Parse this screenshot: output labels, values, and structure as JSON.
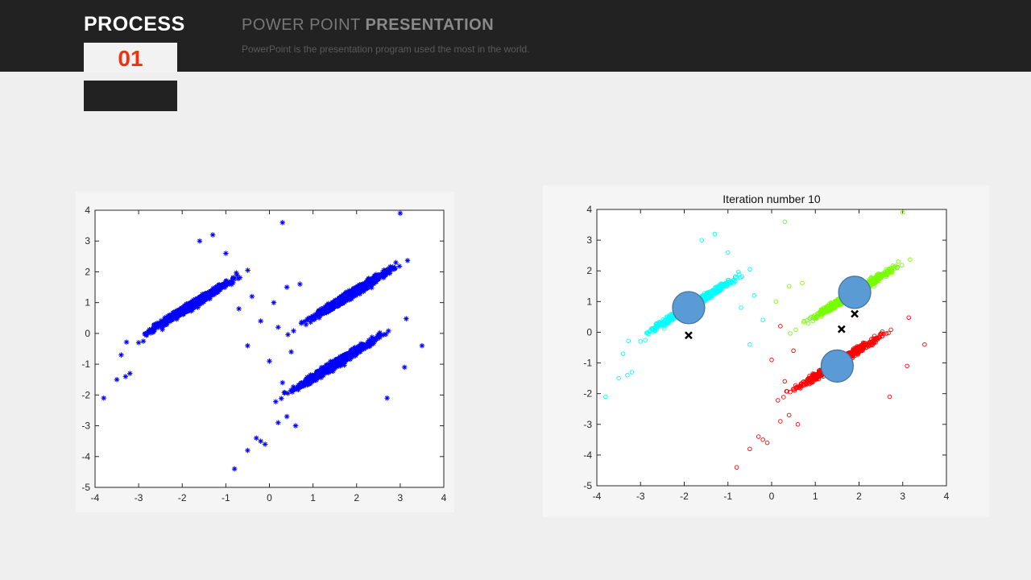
{
  "header": {
    "process_label": "PROCESS",
    "process_number": "01",
    "headline_light": "POWER POINT",
    "headline_bold": "PRESENTATION",
    "subtitle": "PowerPoint is the presentation program used the most in the world."
  },
  "colors": {
    "header_bg": "#222222",
    "page_bg": "#efefef",
    "accent_number": "#ee3311",
    "raw_points": "#0000ff",
    "cluster_cyan": "#00ffff",
    "cluster_green": "#77ff00",
    "cluster_red": "#ff0000",
    "centroid": "#5b9bd5"
  },
  "chart_data": [
    {
      "type": "scatter",
      "title": "",
      "xlabel": "",
      "ylabel": "",
      "xlim": [
        -4,
        4
      ],
      "ylim": [
        -5,
        4
      ],
      "xticks": [
        "-4",
        "-3",
        "-2",
        "-1",
        "0",
        "1",
        "2",
        "3",
        "4"
      ],
      "yticks": [
        "4",
        "3",
        "2",
        "1",
        "0",
        "-1",
        "-2",
        "-3",
        "-4",
        "-5"
      ],
      "grid": false,
      "marker": "asterisk",
      "series": [
        {
          "color": "#0000ff",
          "clusters": [
            {
              "center": [
                -1.8,
                0.9
              ],
              "count": 900
            },
            {
              "center": [
                1.9,
                1.3
              ],
              "count": 1000
            },
            {
              "center": [
                1.5,
                -1.0
              ],
              "count": 1000
            }
          ]
        }
      ],
      "outliers": [
        [
          -3.8,
          -2.1
        ],
        [
          -3.5,
          -1.5
        ],
        [
          -3.3,
          -1.4
        ],
        [
          -3.2,
          -1.3
        ],
        [
          -3.4,
          -0.7
        ],
        [
          -3.0,
          -0.3
        ],
        [
          -1.0,
          2.6
        ],
        [
          -1.3,
          3.2
        ],
        [
          -1.6,
          3.0
        ],
        [
          0.3,
          3.6
        ],
        [
          3.0,
          3.9
        ],
        [
          3.5,
          -0.4
        ],
        [
          3.1,
          -1.1
        ],
        [
          -0.3,
          -3.4
        ],
        [
          -0.2,
          -3.5
        ],
        [
          -0.1,
          -3.6
        ],
        [
          -0.5,
          -3.8
        ],
        [
          -0.8,
          -4.4
        ],
        [
          0.2,
          -2.9
        ],
        [
          0.4,
          -2.7
        ],
        [
          0.6,
          -3.0
        ],
        [
          0.5,
          -0.6
        ],
        [
          0.2,
          0.2
        ],
        [
          -0.2,
          0.4
        ],
        [
          0.1,
          1.0
        ],
        [
          0.4,
          1.5
        ],
        [
          0.7,
          1.6
        ],
        [
          -0.4,
          1.2
        ],
        [
          -0.7,
          0.8
        ],
        [
          0.0,
          -0.9
        ],
        [
          -0.5,
          -0.4
        ],
        [
          0.9,
          0.5
        ],
        [
          0.3,
          -1.6
        ],
        [
          2.7,
          -2.1
        ],
        [
          2.9,
          2.3
        ]
      ]
    },
    {
      "type": "scatter",
      "title": "Iteration number 10",
      "xlabel": "",
      "ylabel": "",
      "xlim": [
        -4,
        4
      ],
      "ylim": [
        -5,
        4
      ],
      "xticks": [
        "-4",
        "-3",
        "-2",
        "-1",
        "0",
        "1",
        "2",
        "3",
        "4"
      ],
      "yticks": [
        "4",
        "3",
        "2",
        "1",
        "0",
        "-1",
        "-2",
        "-3",
        "-4",
        "-5"
      ],
      "grid": false,
      "marker": "circle",
      "series": [
        {
          "color": "#00ffff",
          "center": [
            -1.8,
            0.9
          ],
          "count": 900
        },
        {
          "color": "#77ff00",
          "center": [
            1.9,
            1.3
          ],
          "count": 1000
        },
        {
          "color": "#ff0000",
          "center": [
            1.5,
            -1.0
          ],
          "count": 1000
        }
      ],
      "centroids": [
        [
          -1.9,
          0.8
        ],
        [
          1.9,
          1.3
        ],
        [
          1.5,
          -1.1
        ]
      ],
      "crosses": [
        [
          1.6,
          0.1
        ],
        [
          -1.9,
          -0.1
        ],
        [
          1.9,
          0.6
        ]
      ]
    }
  ]
}
